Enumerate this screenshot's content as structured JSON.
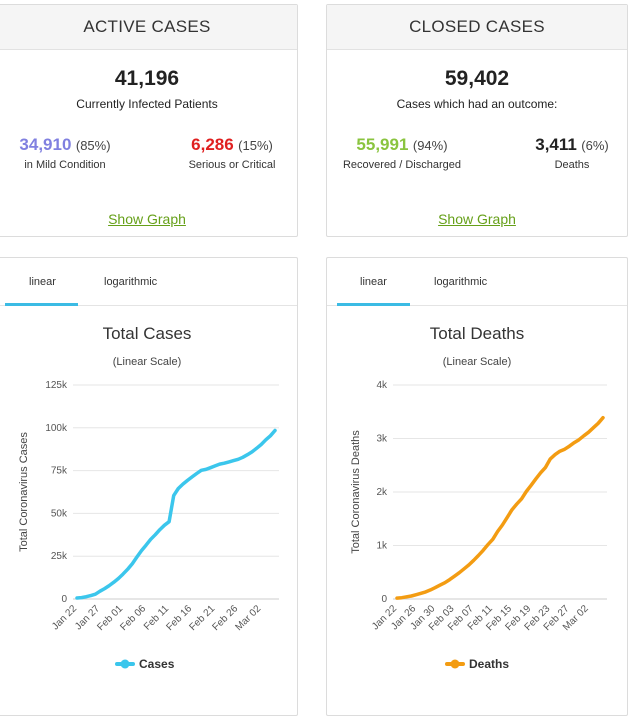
{
  "active": {
    "header": "ACTIVE CASES",
    "total": "41,196",
    "total_label": "Currently Infected Patients",
    "mild_value": "34,910",
    "mild_pct": "(85%)",
    "mild_label": "in Mild Condition",
    "serious_value": "6,286",
    "serious_pct": "(15%)",
    "serious_label": "Serious or Critical",
    "show_graph": "Show Graph",
    "colors": {
      "mild": "#8080e0",
      "serious": "#e02020"
    }
  },
  "closed": {
    "header": "CLOSED CASES",
    "total": "59,402",
    "total_label": "Cases which had an outcome:",
    "recovered_value": "55,991",
    "recovered_pct": "(94%)",
    "recovered_label": "Recovered / Discharged",
    "deaths_value": "3,411",
    "deaths_pct": "(6%)",
    "deaths_label": "Deaths",
    "show_graph": "Show Graph",
    "colors": {
      "recovered": "#8ac43f",
      "deaths": "#222222"
    }
  },
  "tabs": {
    "linear": "linear",
    "log": "logarithmic",
    "active": "linear"
  },
  "chart_data": [
    {
      "type": "line",
      "title": "Total Cases",
      "subtitle": "(Linear Scale)",
      "xlabel": "",
      "ylabel": "Total Coronavirus Cases",
      "ylim": [
        0,
        125000
      ],
      "yticks": [
        0,
        25000,
        50000,
        75000,
        100000,
        125000
      ],
      "ytick_labels": [
        "0",
        "25k",
        "50k",
        "75k",
        "100k",
        "125k"
      ],
      "x_tick_labels": [
        "Jan 22",
        "Jan 27",
        "Feb 01",
        "Feb 06",
        "Feb 11",
        "Feb 16",
        "Feb 21",
        "Feb 26",
        "Mar 02"
      ],
      "grid": true,
      "legend_position": "bottom",
      "color": "#3bc6ec",
      "x": [
        "Jan 22",
        "Jan 23",
        "Jan 24",
        "Jan 25",
        "Jan 26",
        "Jan 27",
        "Jan 28",
        "Jan 29",
        "Jan 30",
        "Jan 31",
        "Feb 01",
        "Feb 02",
        "Feb 03",
        "Feb 04",
        "Feb 05",
        "Feb 06",
        "Feb 07",
        "Feb 08",
        "Feb 09",
        "Feb 10",
        "Feb 11",
        "Feb 12",
        "Feb 13",
        "Feb 14",
        "Feb 15",
        "Feb 16",
        "Feb 17",
        "Feb 18",
        "Feb 19",
        "Feb 20",
        "Feb 21",
        "Feb 22",
        "Feb 23",
        "Feb 24",
        "Feb 25",
        "Feb 26",
        "Feb 27",
        "Feb 28",
        "Feb 29",
        "Mar 01",
        "Mar 02",
        "Mar 03",
        "Mar 04",
        "Mar 05"
      ],
      "series": [
        {
          "name": "Cases",
          "values": [
            580,
            845,
            1320,
            2010,
            2800,
            4580,
            6060,
            7820,
            9830,
            11950,
            14550,
            17390,
            20630,
            24550,
            28280,
            31490,
            34880,
            37560,
            40550,
            43100,
            45170,
            60380,
            64540,
            67100,
            69260,
            71330,
            73330,
            75200,
            75700,
            76680,
            77770,
            78800,
            79340,
            80090,
            80830,
            81580,
            82750,
            84260,
            85930,
            88050,
            90270,
            93000,
            95300,
            98420
          ]
        }
      ]
    },
    {
      "type": "line",
      "title": "Total Deaths",
      "subtitle": "(Linear Scale)",
      "xlabel": "",
      "ylabel": "Total Coronavirus Deaths",
      "ylim": [
        0,
        4000
      ],
      "yticks": [
        0,
        1000,
        2000,
        3000,
        4000
      ],
      "ytick_labels": [
        "0",
        "1k",
        "2k",
        "3k",
        "4k"
      ],
      "x_tick_labels": [
        "Jan 22",
        "Jan 26",
        "Jan 30",
        "Feb 03",
        "Feb 07",
        "Feb 11",
        "Feb 15",
        "Feb 19",
        "Feb 23",
        "Feb 27",
        "Mar 02"
      ],
      "grid": true,
      "legend_position": "bottom",
      "color": "#f39c12",
      "x": [
        "Jan 22",
        "Jan 23",
        "Jan 24",
        "Jan 25",
        "Jan 26",
        "Jan 27",
        "Jan 28",
        "Jan 29",
        "Jan 30",
        "Jan 31",
        "Feb 01",
        "Feb 02",
        "Feb 03",
        "Feb 04",
        "Feb 05",
        "Feb 06",
        "Feb 07",
        "Feb 08",
        "Feb 09",
        "Feb 10",
        "Feb 11",
        "Feb 12",
        "Feb 13",
        "Feb 14",
        "Feb 15",
        "Feb 16",
        "Feb 17",
        "Feb 18",
        "Feb 19",
        "Feb 20",
        "Feb 21",
        "Feb 22",
        "Feb 23",
        "Feb 24",
        "Feb 25",
        "Feb 26",
        "Feb 27",
        "Feb 28",
        "Feb 29",
        "Mar 01",
        "Mar 02",
        "Mar 03",
        "Mar 04",
        "Mar 05"
      ],
      "series": [
        {
          "name": "Deaths",
          "values": [
            17,
            25,
            41,
            56,
            80,
            106,
            132,
            170,
            213,
            259,
            304,
            362,
            426,
            492,
            565,
            638,
            724,
            813,
            910,
            1018,
            1115,
            1261,
            1383,
            1526,
            1669,
            1775,
            1873,
            2009,
            2126,
            2247,
            2360,
            2460,
            2618,
            2699,
            2763,
            2800,
            2858,
            2923,
            2977,
            3050,
            3117,
            3202,
            3285,
            3388
          ]
        }
      ]
    }
  ]
}
